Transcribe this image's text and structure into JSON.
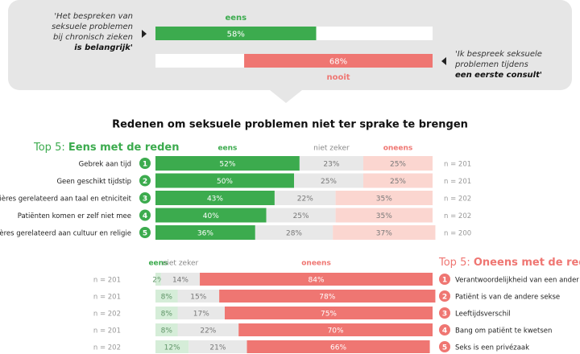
{
  "chart_data": [
    {
      "type": "bar",
      "orientation": "horizontal",
      "xlim": [
        0,
        100
      ],
      "bars": [
        {
          "name": "eens",
          "value": 58,
          "value_label": "58%",
          "color": "#3cab4e",
          "from": "left",
          "quote": "'Het bespreken van seksuele problemen bij chronisch zieken",
          "quote_emphasis": "is belangrijk'"
        },
        {
          "name": "nooit",
          "value": 68,
          "value_label": "68%",
          "color": "#ef7672",
          "from": "right",
          "quote": "'Ik bespreek seksuele problemen tijdens",
          "quote_emphasis": "een eerste consult'"
        }
      ]
    },
    {
      "type": "stacked_bar",
      "orientation": "horizontal",
      "title": "Redenen om seksuele problemen niet ter sprake te brengen",
      "heading_prefix": "Top 5:",
      "heading": "Eens met de reden",
      "heading_color": "#3cab4e",
      "label_side": "left",
      "xlim": [
        0,
        100
      ],
      "ranks": [
        1,
        2,
        3,
        4,
        5
      ],
      "categories": [
        "Gebrek aan tijd",
        "Geen geschikt tijdstip",
        "Barrières gerelateerd aan taal en etniciteit",
        "Patiënten komen er zelf niet mee",
        "Barrières gerelateerd aan cultuur en religie"
      ],
      "n_labels": [
        "n = 201",
        "n = 201",
        "n = 202",
        "n = 202",
        "n = 200"
      ],
      "series": [
        {
          "name": "eens",
          "color": "#3cab4e",
          "text_color": "#ffffff",
          "legend_color": "#3cab4e",
          "values": [
            52,
            50,
            43,
            40,
            36
          ],
          "value_labels": [
            "52%",
            "50%",
            "43%",
            "40%",
            "36%"
          ]
        },
        {
          "name": "niet zeker",
          "color": "#e8e8e8",
          "text_color": "#777777",
          "legend_color": "#888888",
          "values": [
            23,
            25,
            22,
            25,
            28
          ],
          "value_labels": [
            "23%",
            "25%",
            "22%",
            "25%",
            "28%"
          ]
        },
        {
          "name": "oneens",
          "color": "#fbd6d0",
          "text_color": "#777777",
          "legend_color": "#ef7672",
          "values": [
            25,
            25,
            35,
            35,
            37
          ],
          "value_labels": [
            "25%",
            "25%",
            "35%",
            "35%",
            "37%"
          ]
        }
      ]
    },
    {
      "type": "stacked_bar",
      "orientation": "horizontal",
      "heading_prefix": "Top 5:",
      "heading": "Oneens met de reden",
      "heading_color": "#ef7672",
      "label_side": "right",
      "xlim": [
        0,
        100
      ],
      "ranks": [
        1,
        2,
        3,
        4,
        5
      ],
      "categories": [
        "Verantwoordelijkheid van een ander",
        "Patiënt is van de andere sekse",
        "Leeftijdsverschil",
        "Bang om patiënt te kwetsen",
        "Seks is een privézaak"
      ],
      "n_labels": [
        "n = 201",
        "n = 201",
        "n = 202",
        "n = 201",
        "n = 202"
      ],
      "series": [
        {
          "name": "eens",
          "color": "#d5edd8",
          "text_color": "#5e9466",
          "legend_color": "#3cab4e",
          "values": [
            2,
            8,
            8,
            8,
            12
          ],
          "value_labels": [
            "2%",
            "8%",
            "8%",
            "8%",
            "12%"
          ]
        },
        {
          "name": "niet zeker",
          "color": "#e8e8e8",
          "text_color": "#777777",
          "legend_color": "#888888",
          "values": [
            14,
            15,
            17,
            22,
            21
          ],
          "value_labels": [
            "14%",
            "15%",
            "17%",
            "22%",
            "21%"
          ]
        },
        {
          "name": "oneens",
          "color": "#ef7672",
          "text_color": "#ffffff",
          "legend_color": "#ef7672",
          "values": [
            84,
            78,
            75,
            70,
            66
          ],
          "value_labels": [
            "84%",
            "78%",
            "75%",
            "70%",
            "66%"
          ]
        }
      ]
    }
  ]
}
